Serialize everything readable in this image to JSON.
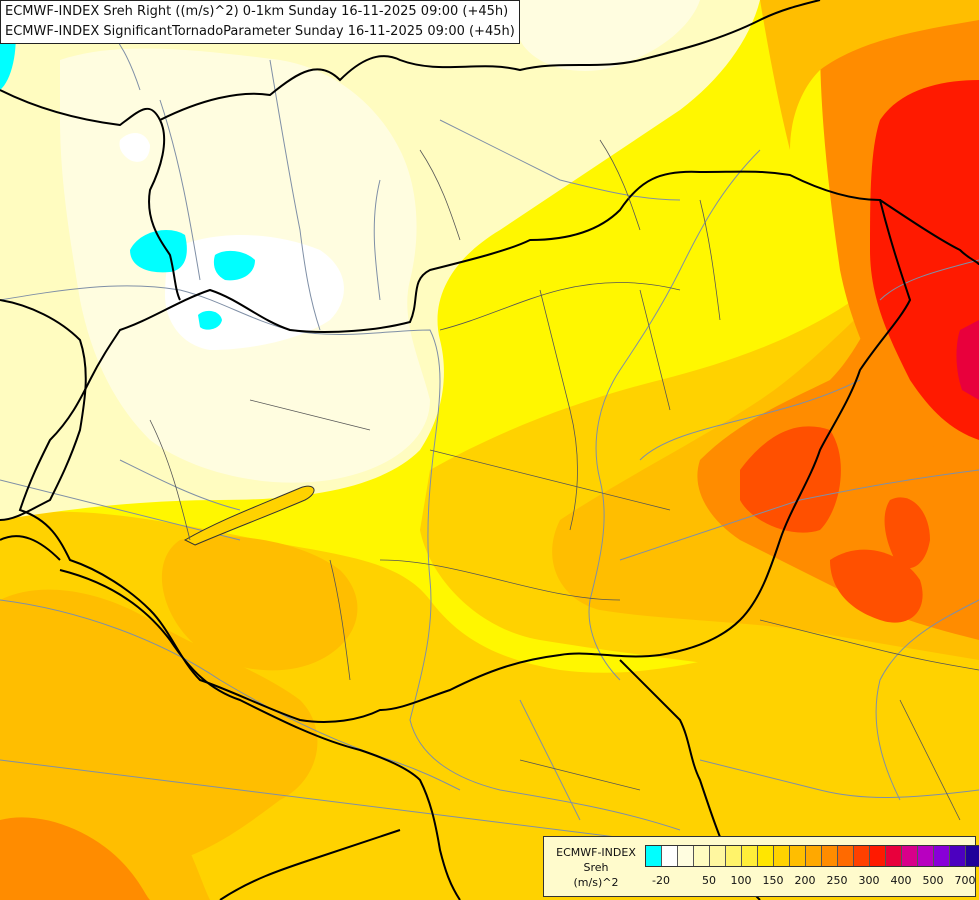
{
  "title": {
    "line1": "ECMWF-INDEX Sreh Right ((m/s)^2) 0-1km Sunday 16-11-2025 09:00 (+45h)",
    "line2": "ECMWF-INDEX SignificantTornadoParameter Sunday 16-11-2025 09:00 (+45h)"
  },
  "legend": {
    "model": "ECMWF-INDEX",
    "variable": "Sreh",
    "unit": "(m/s)^2",
    "colors": [
      "#00ffff",
      "#ffffff",
      "#fffde0",
      "#fffcc0",
      "#fff7a0",
      "#fff36a",
      "#ffee3a",
      "#ffe600",
      "#ffd200",
      "#ffbe00",
      "#ffa800",
      "#ff8c00",
      "#ff6a00",
      "#ff4000",
      "#ff1a00",
      "#e8003c",
      "#d8008a",
      "#b800c0",
      "#8800d8",
      "#4c00c0",
      "#20009a",
      "#000070"
    ],
    "ticks": [
      "-20",
      "50",
      "100",
      "150",
      "200",
      "250",
      "300",
      "400",
      "500",
      "700"
    ]
  },
  "map": {
    "field_colors": {
      "pale": "#fffde0",
      "light": "#fffcc0",
      "yellow": "#fff700",
      "gold": "#ffd200",
      "orange": "#ffbe00",
      "dark_orange": "#ff8c00",
      "red_orange": "#ff5000",
      "red": "#ff2000",
      "cyan": "#00ffff",
      "white": "#ffffff"
    }
  }
}
